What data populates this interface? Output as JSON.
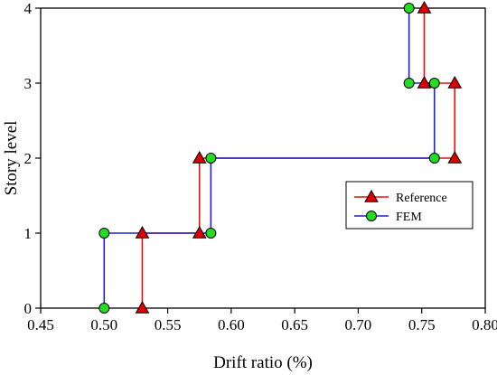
{
  "chart_data": {
    "type": "line",
    "xlabel": "Drift ratio (%)",
    "ylabel": "Story level",
    "xlim": [
      0.45,
      0.8
    ],
    "ylim": [
      0,
      4
    ],
    "xticks": [
      0.45,
      0.5,
      0.55,
      0.6,
      0.65,
      0.7,
      0.75,
      0.8
    ],
    "xtick_labels": [
      "0.45",
      "0.50",
      "0.55",
      "0.60",
      "0.65",
      "0.70",
      "0.75",
      "0.80"
    ],
    "yticks": [
      0,
      1,
      2,
      3,
      4
    ],
    "ytick_labels": [
      "0",
      "1",
      "2",
      "3",
      "4"
    ],
    "grid": false,
    "legend_position": "right",
    "series": [
      {
        "name": "Reference",
        "color": "#e01010",
        "marker": "triangle",
        "marker_fill": "#dd0000",
        "points": [
          [
            0.53,
            0
          ],
          [
            0.53,
            1
          ],
          [
            0.575,
            1
          ],
          [
            0.575,
            2
          ],
          [
            0.776,
            2
          ],
          [
            0.776,
            3
          ],
          [
            0.752,
            3
          ],
          [
            0.752,
            4
          ]
        ]
      },
      {
        "name": "FEM",
        "color": "#2020d0",
        "marker": "circle",
        "marker_fill": "#22dd22",
        "points": [
          [
            0.5,
            0
          ],
          [
            0.5,
            1
          ],
          [
            0.584,
            1
          ],
          [
            0.584,
            2
          ],
          [
            0.76,
            2
          ],
          [
            0.76,
            3
          ],
          [
            0.74,
            3
          ],
          [
            0.74,
            4
          ]
        ]
      }
    ]
  }
}
